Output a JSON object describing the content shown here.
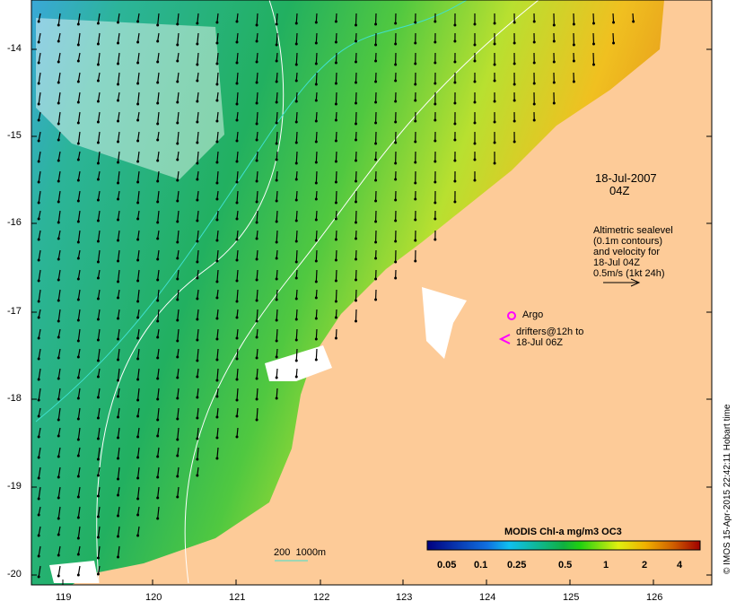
{
  "map": {
    "date_label": "18-Jul-2007",
    "time_label": "04Z",
    "altimetry_lines": [
      "Altimetric sealevel",
      "(0.1m contours)",
      "and velocity for",
      "18-Jul 04Z",
      "0.5m/s (1kt 24h)"
    ],
    "argo_label": "Argo",
    "drifters_lines": [
      "drifters@12h to",
      "18-Jul 06Z"
    ],
    "scale_label": "200  1000m",
    "credit": "© IMOS 15-Apr-2015 22:42:11 Hobart time",
    "x_ticks": [
      "119",
      "120",
      "121",
      "122",
      "123",
      "124",
      "125",
      "126"
    ],
    "y_ticks": [
      "-14",
      "-15",
      "-16",
      "-17",
      "-18",
      "-19",
      "-20"
    ]
  },
  "colorbar": {
    "title": "MODIS Chl-a mg/m3 OC3",
    "ticks": [
      "0.05",
      "0.1",
      "0.25",
      "0.5",
      "1",
      "2",
      "4"
    ]
  },
  "colors": {
    "land": "#fdcb98",
    "argo": "#ff00ff",
    "contour": "#ffffff",
    "isobath": "#40e0d0"
  }
}
